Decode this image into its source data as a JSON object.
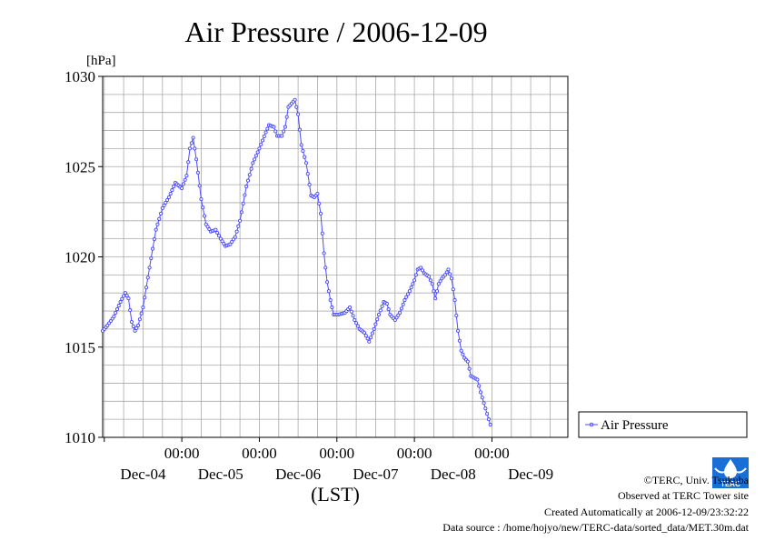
{
  "chart_data": {
    "type": "line",
    "title": "Air Pressure / 2006-12-09",
    "ylabel": "[hPa]",
    "xlabel": "(LST)",
    "ylim": [
      1010,
      1030
    ],
    "y_ticks": [
      "1010",
      "1015",
      "1020",
      "1025",
      "1030"
    ],
    "x_range": [
      "2006-12-03T23:30",
      "2006-12-09T23:30"
    ],
    "x_ticks": [
      {
        "time": "00:00",
        "date": "Dec-04"
      },
      {
        "time": "00:00",
        "date": "Dec-05"
      },
      {
        "time": "00:00",
        "date": "Dec-06"
      },
      {
        "time": "00:00",
        "date": "Dec-07"
      },
      {
        "time": "00:00",
        "date": "Dec-08"
      },
      {
        "time": "00:00",
        "date": "Dec-09"
      }
    ],
    "date_labels": [
      "Dec-04",
      "Dec-05",
      "Dec-06",
      "Dec-07",
      "Dec-08",
      "Dec-09"
    ],
    "grid": true,
    "legend_position": "right",
    "series": [
      {
        "name": "Air Pressure",
        "color": "#4b4bff",
        "marker": "circle",
        "interval_minutes": 30,
        "points": [
          [
            "2006-12-03T23:30",
            1015.9
          ],
          [
            "2006-12-04T01:00",
            1016.2
          ],
          [
            "2006-12-04T03:00",
            1016.7
          ],
          [
            "2006-12-04T05:00",
            1017.5
          ],
          [
            "2006-12-04T06:30",
            1018.0
          ],
          [
            "2006-12-04T07:30",
            1017.7
          ],
          [
            "2006-12-04T08:30",
            1016.4
          ],
          [
            "2006-12-04T09:30",
            1015.9
          ],
          [
            "2006-12-04T10:30",
            1016.2
          ],
          [
            "2006-12-04T12:00",
            1017.2
          ],
          [
            "2006-12-04T14:00",
            1019.4
          ],
          [
            "2006-12-04T16:00",
            1021.5
          ],
          [
            "2006-12-04T18:00",
            1022.7
          ],
          [
            "2006-12-04T20:00",
            1023.3
          ],
          [
            "2006-12-04T22:00",
            1024.1
          ],
          [
            "2006-12-05T00:00",
            1023.8
          ],
          [
            "2006-12-05T01:30",
            1024.5
          ],
          [
            "2006-12-05T02:30",
            1026.0
          ],
          [
            "2006-12-05T03:30",
            1026.6
          ],
          [
            "2006-12-05T04:30",
            1025.4
          ],
          [
            "2006-12-05T06:00",
            1023.2
          ],
          [
            "2006-12-05T07:30",
            1021.8
          ],
          [
            "2006-12-05T09:00",
            1021.4
          ],
          [
            "2006-12-05T10:30",
            1021.5
          ],
          [
            "2006-12-05T12:00",
            1021.0
          ],
          [
            "2006-12-05T13:30",
            1020.6
          ],
          [
            "2006-12-05T15:00",
            1020.7
          ],
          [
            "2006-12-05T16:30",
            1021.1
          ],
          [
            "2006-12-05T18:00",
            1022.0
          ],
          [
            "2006-12-05T20:00",
            1023.9
          ],
          [
            "2006-12-05T22:00",
            1025.2
          ],
          [
            "2006-12-06T00:00",
            1026.0
          ],
          [
            "2006-12-06T02:00",
            1026.9
          ],
          [
            "2006-12-06T03:00",
            1027.3
          ],
          [
            "2006-12-06T04:30",
            1027.2
          ],
          [
            "2006-12-06T05:30",
            1026.7
          ],
          [
            "2006-12-06T07:00",
            1026.7
          ],
          [
            "2006-12-06T08:00",
            1027.2
          ],
          [
            "2006-12-06T09:00",
            1028.3
          ],
          [
            "2006-12-06T10:00",
            1028.5
          ],
          [
            "2006-12-06T11:00",
            1028.7
          ],
          [
            "2006-12-06T12:00",
            1027.9
          ],
          [
            "2006-12-06T13:00",
            1026.2
          ],
          [
            "2006-12-06T14:30",
            1025.2
          ],
          [
            "2006-12-06T16:00",
            1023.4
          ],
          [
            "2006-12-06T17:00",
            1023.3
          ],
          [
            "2006-12-06T18:00",
            1023.5
          ],
          [
            "2006-12-06T19:00",
            1022.4
          ],
          [
            "2006-12-06T20:00",
            1020.2
          ],
          [
            "2006-12-06T21:00",
            1018.6
          ],
          [
            "2006-12-06T22:00",
            1017.6
          ],
          [
            "2006-12-06T23:00",
            1016.8
          ],
          [
            "2006-12-07T00:30",
            1016.8
          ],
          [
            "2006-12-07T02:30",
            1016.9
          ],
          [
            "2006-12-07T04:00",
            1017.2
          ],
          [
            "2006-12-07T05:30",
            1016.5
          ],
          [
            "2006-12-07T07:00",
            1016.0
          ],
          [
            "2006-12-07T08:30",
            1015.8
          ],
          [
            "2006-12-07T10:00",
            1015.3
          ],
          [
            "2006-12-07T11:30",
            1016.0
          ],
          [
            "2006-12-07T13:00",
            1016.8
          ],
          [
            "2006-12-07T14:30",
            1017.5
          ],
          [
            "2006-12-07T15:30",
            1017.4
          ],
          [
            "2006-12-07T16:30",
            1016.8
          ],
          [
            "2006-12-07T18:00",
            1016.5
          ],
          [
            "2006-12-07T19:30",
            1016.9
          ],
          [
            "2006-12-07T21:00",
            1017.6
          ],
          [
            "2006-12-07T22:30",
            1018.1
          ],
          [
            "2006-12-08T00:00",
            1018.7
          ],
          [
            "2006-12-08T01:00",
            1019.3
          ],
          [
            "2006-12-08T02:00",
            1019.4
          ],
          [
            "2006-12-08T03:00",
            1019.1
          ],
          [
            "2006-12-08T04:30",
            1018.9
          ],
          [
            "2006-12-08T05:30",
            1018.5
          ],
          [
            "2006-12-08T06:30",
            1017.7
          ],
          [
            "2006-12-08T07:30",
            1018.5
          ],
          [
            "2006-12-08T08:30",
            1018.8
          ],
          [
            "2006-12-08T09:30",
            1019.0
          ],
          [
            "2006-12-08T10:30",
            1019.3
          ],
          [
            "2006-12-08T11:30",
            1018.8
          ],
          [
            "2006-12-08T12:30",
            1017.6
          ],
          [
            "2006-12-08T13:30",
            1015.9
          ],
          [
            "2006-12-08T14:30",
            1014.8
          ],
          [
            "2006-12-08T15:30",
            1014.4
          ],
          [
            "2006-12-08T16:30",
            1014.2
          ],
          [
            "2006-12-08T17:30",
            1013.4
          ],
          [
            "2006-12-08T18:30",
            1013.3
          ],
          [
            "2006-12-08T19:30",
            1013.2
          ],
          [
            "2006-12-08T20:30",
            1012.5
          ],
          [
            "2006-12-08T21:30",
            1011.9
          ],
          [
            "2006-12-08T22:30",
            1011.3
          ],
          [
            "2006-12-08T23:30",
            1010.7
          ]
        ]
      }
    ]
  },
  "legend": {
    "label": "Air Pressure"
  },
  "footer": {
    "credit": "©TERC, Univ. Tsukuba",
    "site": "Observed at TERC Tower site",
    "created": "Created Automatically at 2006-12-09/23:32:22",
    "source": "Data source : /home/hojyo/new/TERC-data/sorted_data/MET.30m.dat"
  },
  "logo": {
    "text": "TERC",
    "colors": {
      "blue": "#1a6fd6",
      "white": "#ffffff"
    }
  },
  "colors": {
    "series": "#4b4bff",
    "grid": "#aaaaaa",
    "axis": "#000000"
  }
}
